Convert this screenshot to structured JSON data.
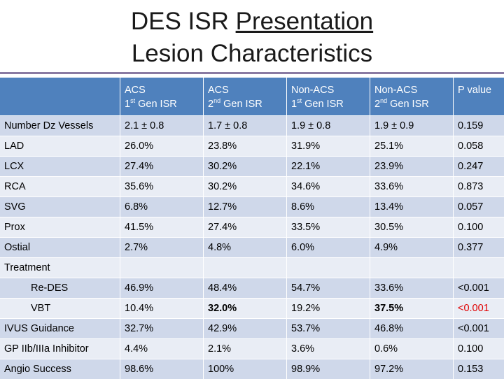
{
  "title": {
    "line1_prefix": "DES ISR ",
    "line1_underlined": "Presentation",
    "line2": "Lesion Characteristics"
  },
  "table": {
    "header": {
      "corner": "",
      "acs1": {
        "line1": "ACS",
        "num": "1",
        "sup": "st",
        "rest": " Gen ISR"
      },
      "acs2": {
        "line1": "ACS",
        "num": "2",
        "sup": "nd",
        "rest": " Gen ISR"
      },
      "nonacs1": {
        "line1": "Non-ACS",
        "num": "1",
        "sup": "st",
        "rest": " Gen ISR"
      },
      "nonacs2": {
        "line1": "Non-ACS",
        "num": "2",
        "sup": "nd",
        "rest": " Gen ISR"
      },
      "pvalue": "P value"
    },
    "rows": [
      {
        "label": "Number Dz Vessels",
        "v": [
          "2.1 ± 0.8",
          "1.7 ± 0.8",
          "1.9 ± 0.8",
          "1.9 ± 0.9",
          "0.159"
        ]
      },
      {
        "label": "LAD",
        "v": [
          "26.0%",
          "23.8%",
          "31.9%",
          "25.1%",
          "0.058"
        ]
      },
      {
        "label": "LCX",
        "v": [
          "27.4%",
          "30.2%",
          "22.1%",
          "23.9%",
          "0.247"
        ]
      },
      {
        "label": "RCA",
        "v": [
          "35.6%",
          "30.2%",
          "34.6%",
          "33.6%",
          "0.873"
        ]
      },
      {
        "label": "SVG",
        "v": [
          "6.8%",
          "12.7%",
          "8.6%",
          "13.4%",
          "0.057"
        ]
      },
      {
        "label": "Prox",
        "v": [
          "41.5%",
          "27.4%",
          "33.5%",
          "30.5%",
          "0.100"
        ]
      },
      {
        "label": "Ostial",
        "v": [
          "2.7%",
          "4.8%",
          "6.0%",
          "4.9%",
          "0.377"
        ]
      },
      {
        "label": "Treatment",
        "v": [
          "",
          "",
          "",
          "",
          ""
        ]
      },
      {
        "label": "Re-DES",
        "v": [
          "46.9%",
          "48.4%",
          "54.7%",
          "33.6%",
          "<0.001"
        ]
      },
      {
        "label": "VBT",
        "v": [
          "10.4%",
          "32.0%",
          "19.2%",
          "37.5%",
          "<0.001"
        ]
      },
      {
        "label": "IVUS Guidance",
        "v": [
          "32.7%",
          "42.9%",
          "53.7%",
          "46.8%",
          "<0.001"
        ]
      },
      {
        "label": "GP IIb/IIIa Inhibitor",
        "v": [
          "4.4%",
          "2.1%",
          "3.6%",
          "0.6%",
          "0.100"
        ]
      },
      {
        "label": "Angio Success",
        "v": [
          "98.6%",
          "100%",
          "98.9%",
          "97.2%",
          "0.153"
        ]
      }
    ]
  },
  "colors": {
    "header_bg": "#4f81bd",
    "row_dark": "#cfd8ea",
    "row_light": "#e9edf5",
    "highlight_red": "#e00000"
  }
}
